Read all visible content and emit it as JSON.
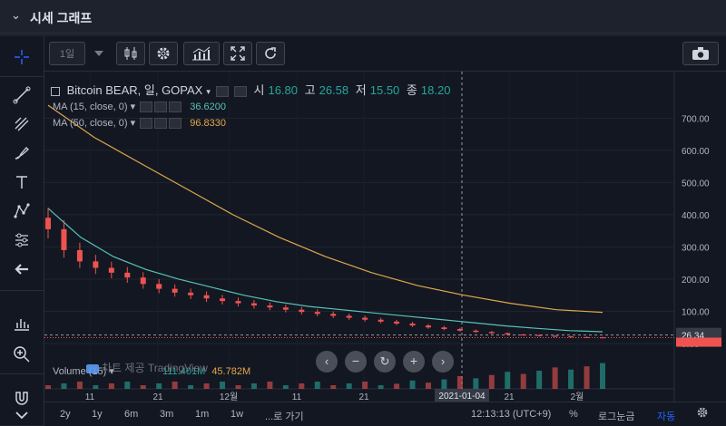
{
  "header": {
    "title": "시세 그래프"
  },
  "toolbar": {
    "interval": "1일"
  },
  "legend": {
    "symbol": "Bitcoin BEAR, 일, GOPAX",
    "open_label": "시",
    "open": "16.80",
    "high_label": "고",
    "high": "26.58",
    "low_label": "저",
    "low": "15.50",
    "close_label": "종",
    "close": "18.20"
  },
  "indicators": [
    {
      "label": "MA (15, close, 0)",
      "value": "36.6200",
      "color": "#56c4b8"
    },
    {
      "label": "MA (50, close, 0)",
      "value": "96.8330",
      "color": "#e0a84a"
    }
  ],
  "volume": {
    "label": "Volume (15)",
    "value1": "111.401M",
    "value2": "45.782M"
  },
  "watermark": "차트 제공 TradingView",
  "price_axis": {
    "ticks": [
      "700.00",
      "600.00",
      "500.00",
      "400.00",
      "300.00",
      "200.00",
      "100.00",
      "0.00"
    ],
    "crosshair_value": "26.34",
    "last_value": "18.20"
  },
  "time_axis": {
    "ticks": [
      "11",
      "21",
      "12월",
      "11",
      "21",
      "11",
      "21",
      "2월"
    ],
    "crosshair_label": "2021-01-04"
  },
  "bottom": {
    "ranges": [
      "2y",
      "1y",
      "6m",
      "3m",
      "1m",
      "1w",
      "...로 가기"
    ],
    "clock": "12:13:13 (UTC+9)",
    "percent": "%",
    "log": "로그눈금",
    "auto": "자동"
  },
  "colors": {
    "up": "#26a69a",
    "down": "#ef5350",
    "ma15": "#56c4b8",
    "ma50": "#e0a84a",
    "bg": "#131722"
  },
  "chart_data": {
    "type": "line",
    "title": "Bitcoin BEAR, 일, GOPAX",
    "ylim": [
      0,
      760
    ],
    "candles_close": [
      355,
      290,
      255,
      235,
      220,
      205,
      185,
      170,
      158,
      150,
      140,
      132,
      125,
      118,
      112,
      105,
      98,
      92,
      86,
      80,
      74,
      68,
      62,
      56,
      50,
      45,
      40,
      36,
      32,
      28,
      26,
      24,
      22,
      20,
      19,
      18.2
    ],
    "ma15_y": [
      420,
      330,
      270,
      230,
      200,
      175,
      150,
      130,
      115,
      105,
      95,
      85,
      75,
      65,
      55,
      47,
      40,
      36.6
    ],
    "ma50_y": [
      740,
      640,
      560,
      480,
      400,
      330,
      270,
      220,
      180,
      150,
      125,
      105,
      96.8
    ]
  }
}
